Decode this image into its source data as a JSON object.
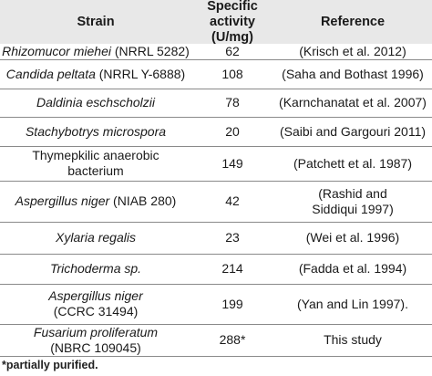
{
  "table": {
    "headers": {
      "strain": "Strain",
      "activity_line1": "Specific activity",
      "activity_line2": "(U/mg)",
      "reference": "Reference"
    },
    "rows": [
      {
        "strain_italic": "Rhizomucor miehei",
        "strain_rest": " (NRRL 5282)",
        "strain_line2": "",
        "activity": "62",
        "reference_line1": "(Krisch et al. 2012)",
        "reference_line2": ""
      },
      {
        "strain_italic": "Candida peltata",
        "strain_rest": " (NRRL Y-6888)",
        "strain_line2": "",
        "activity": "108",
        "reference_line1": "(Saha and Bothast 1996)",
        "reference_line2": ""
      },
      {
        "strain_italic": "Daldinia eschscholzii",
        "strain_rest": "",
        "strain_line2": "",
        "activity": "78",
        "reference_line1": "(Karnchanatat et al. 2007)",
        "reference_line2": ""
      },
      {
        "strain_italic": "Stachybotrys microspora",
        "strain_rest": "",
        "strain_line2": "",
        "activity": "20",
        "reference_line1": "(Saibi and Gargouri 2011)",
        "reference_line2": ""
      },
      {
        "strain_italic": "",
        "strain_rest": "Thymepkilic anaerobic",
        "strain_line2": "bacterium",
        "activity": "149",
        "reference_line1": "(Patchett et al. 1987)",
        "reference_line2": ""
      },
      {
        "strain_italic": "Aspergillus niger",
        "strain_rest": " (NIAB 280)",
        "strain_line2": "",
        "activity": "42",
        "reference_line1": "(Rashid and",
        "reference_line2": "Siddiqui 1997)"
      },
      {
        "strain_italic": "Xylaria regalis",
        "strain_rest": "",
        "strain_line2": "",
        "activity": "23",
        "reference_line1": "(Wei et al. 1996)",
        "reference_line2": ""
      },
      {
        "strain_italic": "Trichoderma sp.",
        "strain_rest": "",
        "strain_line2": "",
        "activity": "214",
        "reference_line1": "(Fadda et al. 1994)",
        "reference_line2": ""
      },
      {
        "strain_italic": "Aspergillus niger",
        "strain_rest": "",
        "strain_line2": "(CCRC 31494)",
        "activity": "199",
        "reference_line1": "(Yan and Lin 1997).",
        "reference_line2": ""
      },
      {
        "strain_italic": "Fusarium proliferatum",
        "strain_rest": "",
        "strain_line2": "(NBRC 109045)",
        "activity": "288*",
        "reference_line1": "This study",
        "reference_line2": ""
      }
    ]
  },
  "footnote": "*partially purified."
}
